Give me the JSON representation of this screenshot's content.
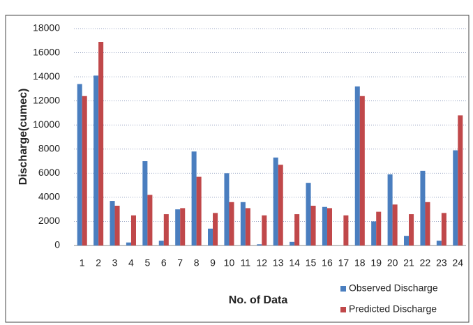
{
  "chart_data": {
    "type": "bar",
    "x_label": "No. of Data",
    "y_label": "Discharge(cumec)",
    "categories": [
      "1",
      "2",
      "3",
      "4",
      "5",
      "6",
      "7",
      "8",
      "9",
      "10",
      "11",
      "12",
      "13",
      "14",
      "15",
      "16",
      "17",
      "18",
      "19",
      "20",
      "21",
      "22",
      "23",
      "24"
    ],
    "series": [
      {
        "name": "Observed Discharge",
        "color": "#4a7ebf",
        "values": [
          13400,
          14100,
          3700,
          250,
          7000,
          400,
          3000,
          7800,
          1400,
          6000,
          3600,
          100,
          7300,
          300,
          5200,
          3200,
          0,
          13200,
          2000,
          5900,
          800,
          6200,
          400,
          7900
        ]
      },
      {
        "name": "Predicted Discharge",
        "color": "#c0484a",
        "values": [
          12400,
          16900,
          3300,
          2500,
          4200,
          2600,
          3100,
          5700,
          2700,
          3600,
          3100,
          2500,
          6700,
          2600,
          3300,
          3100,
          2500,
          12400,
          2800,
          3400,
          2600,
          3600,
          2700,
          10800
        ]
      }
    ],
    "ylim": [
      0,
      18000
    ],
    "yticks": [
      0,
      2000,
      4000,
      6000,
      8000,
      10000,
      12000,
      14000,
      16000,
      18000
    ],
    "grid": true
  }
}
